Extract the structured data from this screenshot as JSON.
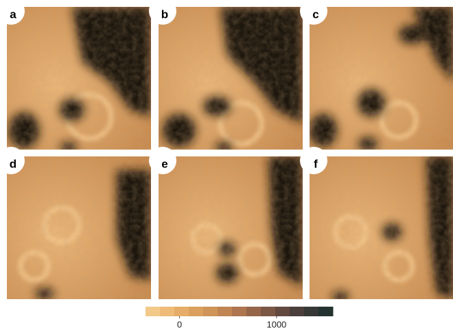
{
  "panels": [
    {
      "label": "a"
    },
    {
      "label": "b"
    },
    {
      "label": "c"
    },
    {
      "label": "d"
    },
    {
      "label": "e"
    },
    {
      "label": "f"
    }
  ],
  "colorbar": {
    "lim": [
      -350,
      1580
    ],
    "ticks": [
      0,
      1000
    ],
    "colors": [
      "#f3c98a",
      "#eebb78",
      "#e6ad68",
      "#dba05e",
      "#cf9457",
      "#c08553",
      "#ad7650",
      "#96664b",
      "#7d5746",
      "#634a41",
      "#4a3f3b",
      "#363836",
      "#24332f"
    ]
  }
}
